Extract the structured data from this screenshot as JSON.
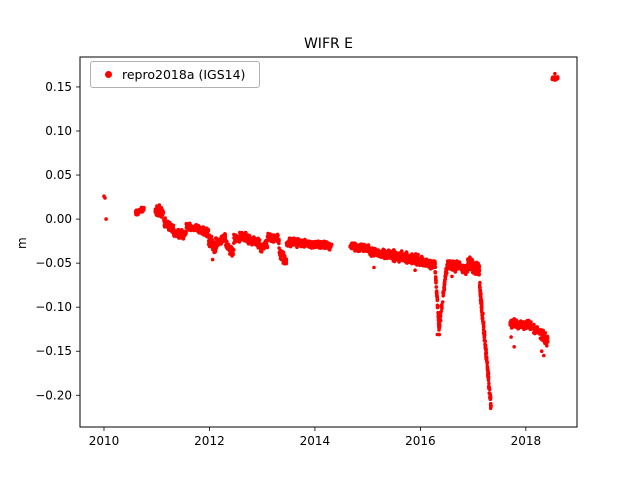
{
  "chart_data": {
    "type": "scatter",
    "title": "WIFR E",
    "xlabel": "",
    "ylabel": "m",
    "legend": [
      "repro2018a (IGS14)"
    ],
    "legend_position": "upper left",
    "marker_color": "#ff0000",
    "axis_color": "#000000",
    "background_color": "#ffffff",
    "grid": false,
    "xlim": [
      2009.545,
      2018.97
    ],
    "ylim": [
      -0.236,
      0.184
    ],
    "xticks": {
      "values": [
        2010,
        2012,
        2014,
        2016,
        2018
      ],
      "labels": [
        "2010",
        "2012",
        "2014",
        "2016",
        "2018"
      ]
    },
    "yticks": {
      "values": [
        -0.2,
        -0.15,
        -0.1,
        -0.05,
        0.0,
        0.05,
        0.1,
        0.15
      ],
      "labels": [
        "−0.20",
        "−0.15",
        "−0.10",
        "−0.05",
        "0.00",
        "0.05",
        "0.10",
        "0.15"
      ]
    },
    "seed": 42,
    "marker_radius": 1.8,
    "series": [
      {
        "name": "repro2018a (IGS14)",
        "trend_description": "GPS station east-component displacement: near 0 m in 2010, gradual decline to -0.05 m by 2016, transient dip to -0.13 m in early 2016, steep plunge to -0.215 m in early-mid 2017, data gap, cluster near -0.12 m in late 2017 through mid 2018, then offset jump to +0.16 m in mid 2018.",
        "segments": [
          {
            "x0": 2010.6,
            "x1": 2010.76,
            "y0": 0.007,
            "y1": 0.011,
            "spread": 0.004,
            "n": 45
          },
          {
            "x0": 2010.97,
            "x1": 2011.13,
            "y0": 0.01,
            "y1": 0.007,
            "spread": 0.006,
            "n": 70
          },
          {
            "x0": 2011.13,
            "x1": 2011.32,
            "y0": -0.002,
            "y1": -0.013,
            "spread": 0.006,
            "n": 65
          },
          {
            "x0": 2011.32,
            "x1": 2011.56,
            "y0": -0.016,
            "y1": -0.017,
            "spread": 0.006,
            "n": 80
          },
          {
            "x0": 2011.56,
            "x1": 2011.8,
            "y0": -0.009,
            "y1": -0.011,
            "spread": 0.005,
            "n": 80
          },
          {
            "x0": 2011.8,
            "x1": 2011.98,
            "y0": -0.012,
            "y1": -0.016,
            "spread": 0.006,
            "n": 60
          },
          {
            "x0": 2011.98,
            "x1": 2012.12,
            "y0": -0.022,
            "y1": -0.033,
            "spread": 0.008,
            "n": 55
          },
          {
            "x0": 2012.12,
            "x1": 2012.3,
            "y0": -0.027,
            "y1": -0.02,
            "spread": 0.007,
            "n": 60
          },
          {
            "x0": 2012.3,
            "x1": 2012.46,
            "y0": -0.028,
            "y1": -0.038,
            "spread": 0.008,
            "n": 50
          },
          {
            "x0": 2012.46,
            "x1": 2012.7,
            "y0": -0.022,
            "y1": -0.02,
            "spread": 0.006,
            "n": 80
          },
          {
            "x0": 2012.7,
            "x1": 2012.96,
            "y0": -0.022,
            "y1": -0.028,
            "spread": 0.006,
            "n": 85
          },
          {
            "x0": 2012.96,
            "x1": 2013.1,
            "y0": -0.033,
            "y1": -0.027,
            "spread": 0.006,
            "n": 45
          },
          {
            "x0": 2013.1,
            "x1": 2013.32,
            "y0": -0.02,
            "y1": -0.023,
            "spread": 0.006,
            "n": 70
          },
          {
            "x0": 2013.32,
            "x1": 2013.46,
            "y0": -0.038,
            "y1": -0.047,
            "spread": 0.007,
            "n": 45
          },
          {
            "x0": 2013.46,
            "x1": 2013.7,
            "y0": -0.028,
            "y1": -0.026,
            "spread": 0.006,
            "n": 80
          },
          {
            "x0": 2013.7,
            "x1": 2014.02,
            "y0": -0.027,
            "y1": -0.029,
            "spread": 0.005,
            "n": 100
          },
          {
            "x0": 2014.02,
            "x1": 2014.32,
            "y0": -0.028,
            "y1": -0.031,
            "spread": 0.005,
            "n": 95
          },
          {
            "x0": 2014.66,
            "x1": 2015.04,
            "y0": -0.031,
            "y1": -0.034,
            "spread": 0.005,
            "n": 120
          },
          {
            "x0": 2015.04,
            "x1": 2015.34,
            "y0": -0.037,
            "y1": -0.04,
            "spread": 0.006,
            "n": 95
          },
          {
            "x0": 2015.34,
            "x1": 2015.64,
            "y0": -0.04,
            "y1": -0.043,
            "spread": 0.007,
            "n": 95
          },
          {
            "x0": 2015.64,
            "x1": 2016.02,
            "y0": -0.043,
            "y1": -0.047,
            "spread": 0.007,
            "n": 120
          },
          {
            "x0": 2016.02,
            "x1": 2016.28,
            "y0": -0.048,
            "y1": -0.053,
            "spread": 0.006,
            "n": 80
          },
          {
            "x0": 2016.28,
            "x1": 2016.36,
            "y0": -0.058,
            "y1": -0.128,
            "spread": 0.006,
            "n": 45
          },
          {
            "x0": 2016.36,
            "x1": 2016.5,
            "y0": -0.12,
            "y1": -0.055,
            "spread": 0.008,
            "n": 45
          },
          {
            "x0": 2016.5,
            "x1": 2016.68,
            "y0": -0.05,
            "y1": -0.054,
            "spread": 0.007,
            "n": 60
          },
          {
            "x0": 2016.68,
            "x1": 2016.9,
            "y0": -0.052,
            "y1": -0.057,
            "spread": 0.007,
            "n": 70
          },
          {
            "x0": 2016.9,
            "x1": 2017.12,
            "y0": -0.05,
            "y1": -0.058,
            "spread": 0.009,
            "n": 110
          },
          {
            "x0": 2017.12,
            "x1": 2017.34,
            "y0": -0.072,
            "y1": -0.214,
            "spread": 0.008,
            "n": 140
          },
          {
            "x0": 2017.7,
            "x1": 2018.04,
            "y0": -0.118,
            "y1": -0.121,
            "spread": 0.006,
            "n": 100
          },
          {
            "x0": 2018.04,
            "x1": 2018.22,
            "y0": -0.119,
            "y1": -0.126,
            "spread": 0.007,
            "n": 55
          },
          {
            "x0": 2018.26,
            "x1": 2018.42,
            "y0": -0.127,
            "y1": -0.14,
            "spread": 0.008,
            "n": 45
          },
          {
            "x0": 2018.5,
            "x1": 2018.62,
            "y0": 0.16,
            "y1": 0.16,
            "spread": 0.0025,
            "n": 30
          }
        ],
        "extra_points": [
          [
            2010.0,
            0.026
          ],
          [
            2010.02,
            0.024
          ],
          [
            2010.04,
            0.0
          ],
          [
            2011.05,
            0.016
          ],
          [
            2012.06,
            -0.046
          ],
          [
            2013.4,
            -0.05
          ],
          [
            2015.12,
            -0.055
          ],
          [
            2015.9,
            -0.058
          ],
          [
            2016.32,
            -0.131
          ],
          [
            2016.6,
            -0.065
          ],
          [
            2017.72,
            -0.134
          ],
          [
            2017.78,
            -0.145
          ],
          [
            2018.3,
            -0.15
          ],
          [
            2018.34,
            -0.155
          ],
          [
            2018.55,
            0.165
          ]
        ]
      }
    ]
  }
}
